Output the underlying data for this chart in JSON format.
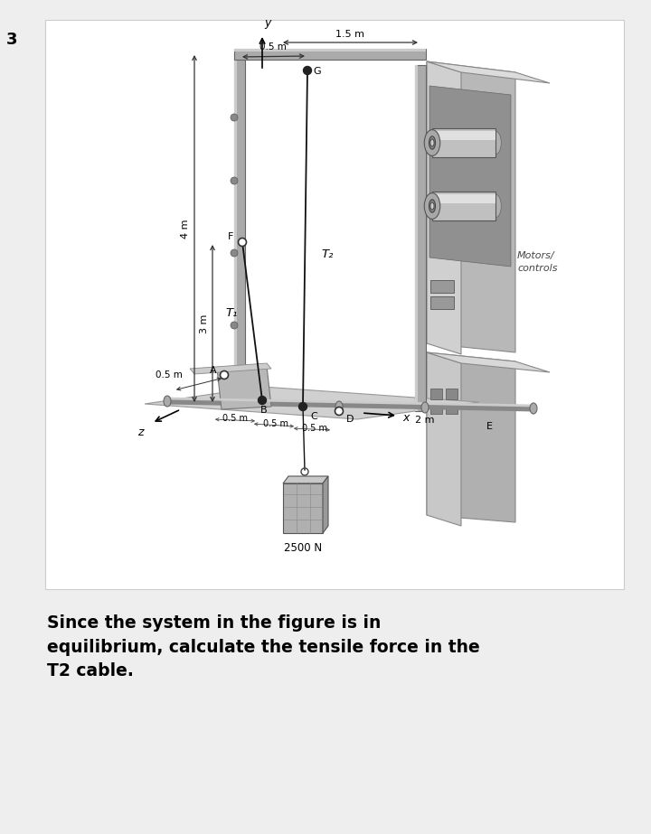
{
  "bg_color": "#eeeeee",
  "panel_bg": "#ffffff",
  "title_number": "3",
  "question_text": "Since the system in the figure is in\nequilibrium, calculate the tensile force in the\nT2 cable.",
  "labels": {
    "dim_1p5m": "1.5 m",
    "dim_0p5m_top": "0.5 m",
    "G": "G",
    "F": "F",
    "T1": "T₁",
    "T2": "T₂",
    "dim_4m": "4 m",
    "dim_3m": "3 m",
    "dim_0p5m_side": "0.5 m",
    "y": "y",
    "z": "z",
    "x": "x",
    "A": "A",
    "B": "B",
    "C": "C",
    "D": "D",
    "E": "E",
    "dim_0p5m_1": "0.5 m",
    "dim_0p5m_2": "0.5 m",
    "dim_0p5m_3": "0.5 m",
    "dim_2m": "2 m",
    "dim_2500N": "2500 N",
    "motors_label": "Motors/\ncontrols"
  }
}
